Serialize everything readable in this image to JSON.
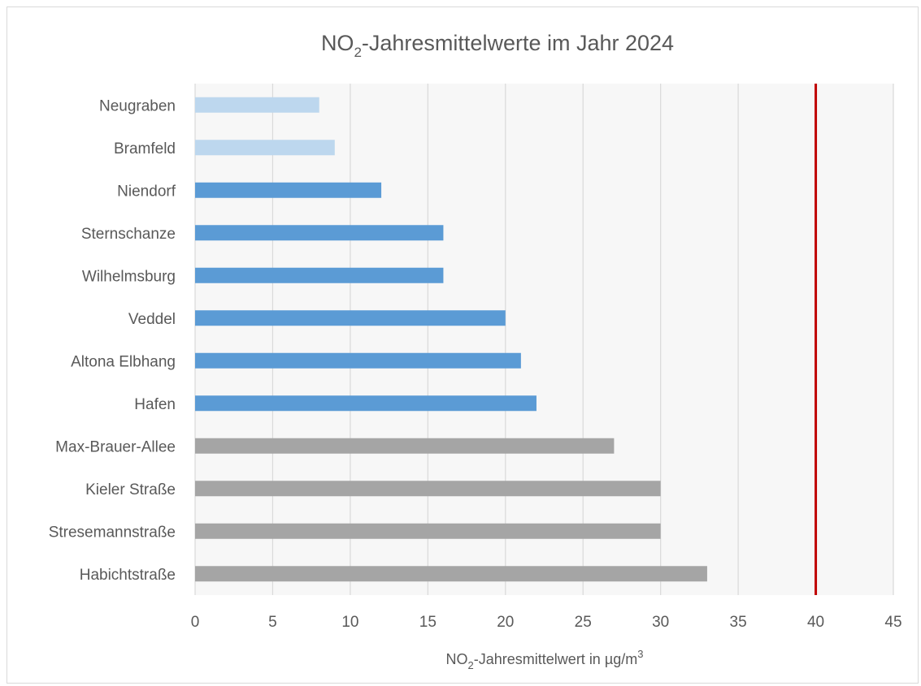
{
  "chart_data": {
    "type": "bar",
    "orientation": "horizontal",
    "title": {
      "main": "NO",
      "sub": "2",
      "rest": "-Jahresmittelwerte im Jahr 2024"
    },
    "xlabel": {
      "main": "NO",
      "sub": "2",
      "mid": "-Jahresmittelwert in µg/m",
      "sup": "3"
    },
    "ylabel": "",
    "categories": [
      "Neugraben",
      "Bramfeld",
      "Niendorf",
      "Sternschanze",
      "Wilhelmsburg",
      "Veddel",
      "Altona Elbhang",
      "Hafen",
      "Max-Brauer-Allee",
      "Kieler Straße",
      "Stresemannstraße",
      "Habichtstraße"
    ],
    "values": [
      8,
      9,
      12,
      16,
      16,
      20,
      21,
      22,
      27,
      30,
      30,
      33
    ],
    "bar_colors": [
      "#bdd7ee",
      "#bdd7ee",
      "#5b9bd5",
      "#5b9bd5",
      "#5b9bd5",
      "#5b9bd5",
      "#5b9bd5",
      "#5b9bd5",
      "#a5a5a5",
      "#a5a5a5",
      "#a5a5a5",
      "#a5a5a5"
    ],
    "xlim": [
      0,
      45
    ],
    "xticks": [
      0,
      5,
      10,
      15,
      20,
      25,
      30,
      35,
      40,
      45
    ],
    "grid": "vertical",
    "reference_line": {
      "value": 40,
      "color": "#c00000"
    },
    "plot_background": "#f7f7f7",
    "gridline_color": "#d9d9d9",
    "text_color": "#595959"
  }
}
